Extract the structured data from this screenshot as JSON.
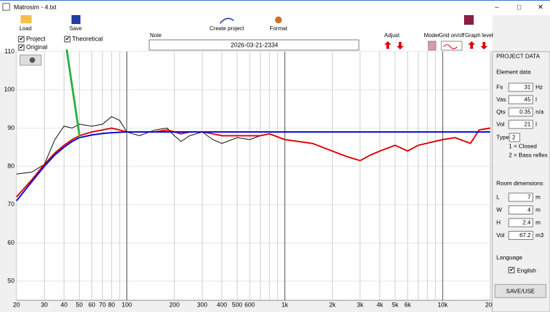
{
  "window": {
    "title": "Matrosim - 4.txt"
  },
  "toolbar": {
    "load": "Load",
    "save": "Save",
    "create_project": "Create project",
    "format": "Format",
    "adjust": "Adjust",
    "moder": "Moder",
    "grid": "Grid on/off",
    "graph_level": "Graph level"
  },
  "note": {
    "label": "Note",
    "value": "2026-03-21-2334"
  },
  "panel": {
    "title": "PROJECT DATA",
    "element_title": "Element data",
    "fields": [
      {
        "label": "Fs",
        "value": "31",
        "unit": "Hz"
      },
      {
        "label": "Vas",
        "value": "45",
        "unit": "l"
      },
      {
        "label": "Qts",
        "value": "0.35",
        "unit": "n/a"
      },
      {
        "label": "Vol",
        "value": "21",
        "unit": "l"
      }
    ],
    "type_label": "Type",
    "type_value": "2",
    "type_notes": [
      "1 = Closed",
      "2 = Bass reflex"
    ],
    "room_title": "Room dimensions",
    "room_fields": [
      {
        "label": "L",
        "value": "7",
        "unit": "m"
      },
      {
        "label": "W",
        "value": "4",
        "unit": "m"
      },
      {
        "label": "H",
        "value": "2.4",
        "unit": "m"
      },
      {
        "label": "Vol",
        "value": "67.2",
        "unit": "m3"
      }
    ],
    "language_label": "Language",
    "language": "English",
    "button": "SAVE/USE"
  },
  "chart_data": {
    "type": "line",
    "xscale": "log",
    "grid": true,
    "x": [
      20,
      25,
      30,
      35,
      40,
      45,
      50,
      60,
      70,
      80,
      90,
      100,
      120,
      150,
      180,
      200,
      220,
      250,
      300,
      350,
      400,
      500,
      600,
      700,
      800,
      1000,
      1500,
      2000,
      2500,
      3000,
      3500,
      4000,
      5000,
      6000,
      7000,
      10000,
      12000,
      15000,
      17000,
      20000
    ],
    "series": [
      {
        "name": "Project",
        "color": "#e00000",
        "values": [
          72,
          76.5,
          80.5,
          83.5,
          85.5,
          87,
          88,
          89,
          89.5,
          90,
          89.5,
          89,
          89,
          89,
          89.5,
          89,
          88.5,
          89,
          89,
          88.5,
          88,
          88,
          88,
          88,
          88.5,
          87,
          86,
          84,
          82.5,
          81.5,
          83,
          84,
          85.5,
          84,
          85.5,
          87,
          87.5,
          86,
          89.5,
          90
        ]
      },
      {
        "name": "Original",
        "color": "#000000",
        "values": [
          78,
          78.5,
          80.5,
          87,
          90.5,
          90,
          91,
          90.5,
          91,
          93,
          92,
          89,
          88,
          89.5,
          90,
          88,
          86.5,
          88,
          89,
          87,
          86,
          87.5,
          87,
          88,
          88.5,
          87,
          86,
          84,
          82.5,
          81.5,
          83,
          84,
          85.5,
          84,
          85.5,
          87,
          87.5,
          86,
          89.5,
          90
        ]
      },
      {
        "name": "Theoretical",
        "color": "#0000e0",
        "values": [
          71,
          76,
          80,
          83,
          85,
          86.5,
          87.5,
          88.2,
          88.6,
          88.8,
          88.9,
          89,
          89,
          89,
          89,
          89,
          89,
          89,
          89,
          89,
          89,
          89,
          89,
          89,
          89,
          89,
          89,
          89,
          89,
          89,
          89,
          89,
          89,
          89,
          89,
          89,
          89,
          89,
          89,
          89
        ]
      }
    ],
    "xlim": [
      20,
      20000
    ],
    "ylim": [
      45,
      110
    ],
    "xticks": [
      20,
      30,
      40,
      50,
      60,
      70,
      80,
      100,
      200,
      300,
      400,
      500,
      600,
      {
        "value": 1000,
        "label": "1k"
      },
      {
        "value": 2000,
        "label": "2k"
      },
      {
        "value": 3000,
        "label": "3k"
      },
      {
        "value": 4000,
        "label": "4k"
      },
      {
        "value": 5000,
        "label": "5k"
      },
      {
        "value": 6000,
        "label": "6k"
      },
      {
        "value": 10000,
        "label": "10k"
      },
      {
        "value": 20000,
        "label": "20k"
      }
    ],
    "xminor": [
      90,
      700,
      800,
      900,
      7000,
      8000,
      9000
    ],
    "yticks": [
      50,
      60,
      70,
      80,
      90,
      100,
      110
    ]
  }
}
